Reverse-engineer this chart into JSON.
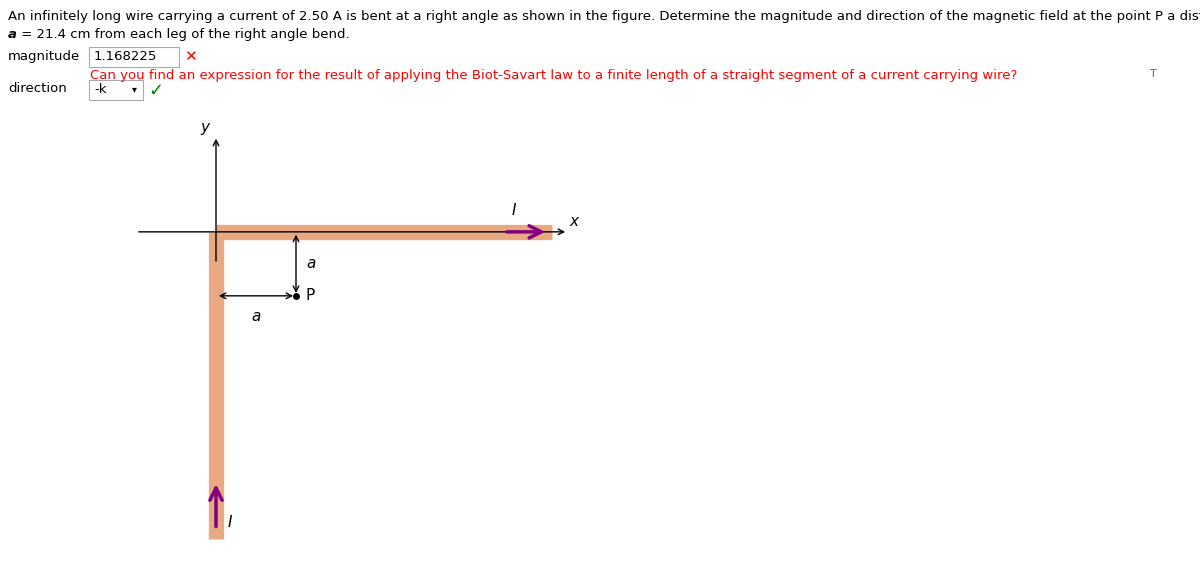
{
  "title_line1": "An infinitely long wire carrying a current of 2.50 A is bent at a right angle as shown in the figure. Determine the magnitude and direction of the magnetic field at the point P a distance",
  "title_line2_a": "a",
  "title_line2_rest": " = 21.4 cm from each leg of the right angle bend.",
  "magnitude_label": "magnitude",
  "magnitude_value": "1.168225",
  "direction_label": "direction",
  "direction_value": "-k",
  "hint_text": "Can you find an expression for the result of applying the Biot-Savart law to a finite length of a straight segment of a current carrying wire?",
  "wire_color": "#e8a882",
  "current_arrow_color": "#800080",
  "background": "#ffffff",
  "fig_width": 12.0,
  "fig_height": 5.63
}
